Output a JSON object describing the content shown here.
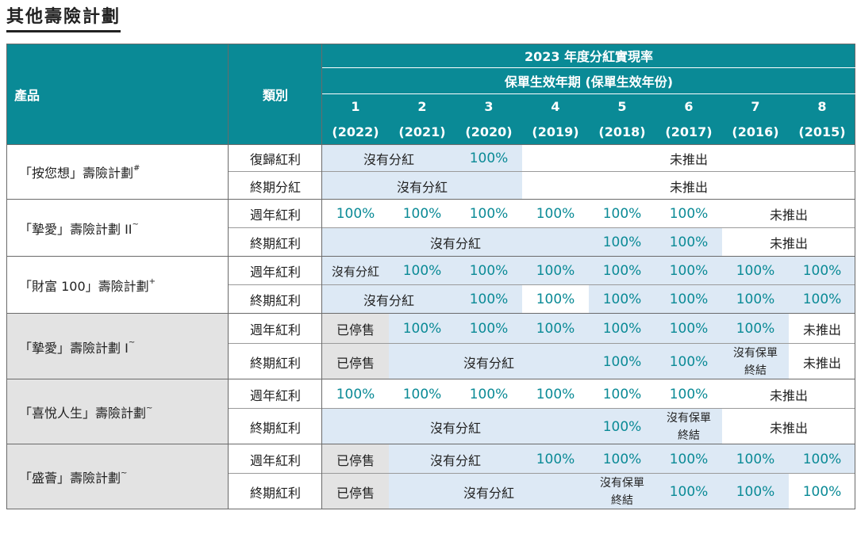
{
  "title": "其他壽險計劃",
  "header": {
    "product": "產品",
    "category": "類別",
    "rate_title": "2023 年度分紅實現率",
    "policy_year_title": "保單生效年期 (保單生效年份)",
    "years": [
      {
        "num": "1",
        "year": "(2022)"
      },
      {
        "num": "2",
        "year": "(2021)"
      },
      {
        "num": "3",
        "year": "(2020)"
      },
      {
        "num": "4",
        "year": "(2019)"
      },
      {
        "num": "5",
        "year": "(2018)"
      },
      {
        "num": "6",
        "year": "(2017)"
      },
      {
        "num": "7",
        "year": "(2016)"
      },
      {
        "num": "8",
        "year": "(2015)"
      }
    ]
  },
  "products": [
    {
      "name": "「按您想」壽險計劃",
      "mark": "#",
      "rows": [
        {
          "category": "復歸紅利",
          "cells": [
            {
              "text": "沒有分紅",
              "span": 2,
              "bg": "b"
            },
            {
              "text": "100%",
              "span": 1,
              "bg": "b",
              "teal": true
            },
            {
              "text": "未推出",
              "span": 5,
              "bg": "w"
            }
          ]
        },
        {
          "category": "終期分紅",
          "cells": [
            {
              "text": "沒有分紅",
              "span": 3,
              "bg": "b"
            },
            {
              "text": "未推出",
              "span": 5,
              "bg": "w"
            }
          ]
        }
      ]
    },
    {
      "name": "「摯愛」壽險計劃 II",
      "mark": "~",
      "rows": [
        {
          "category": "週年紅利",
          "cells": [
            {
              "text": "100%",
              "span": 1,
              "bg": "w",
              "teal": true
            },
            {
              "text": "100%",
              "span": 1,
              "bg": "w",
              "teal": true
            },
            {
              "text": "100%",
              "span": 1,
              "bg": "w",
              "teal": true
            },
            {
              "text": "100%",
              "span": 1,
              "bg": "w",
              "teal": true
            },
            {
              "text": "100%",
              "span": 1,
              "bg": "w",
              "teal": true
            },
            {
              "text": "100%",
              "span": 1,
              "bg": "w",
              "teal": true
            },
            {
              "text": "未推出",
              "span": 2,
              "bg": "w"
            }
          ]
        },
        {
          "category": "終期紅利",
          "cells": [
            {
              "text": "沒有分紅",
              "span": 4,
              "bg": "b"
            },
            {
              "text": "100%",
              "span": 1,
              "bg": "b",
              "teal": true
            },
            {
              "text": "100%",
              "span": 1,
              "bg": "b",
              "teal": true
            },
            {
              "text": "未推出",
              "span": 2,
              "bg": "w"
            }
          ]
        }
      ]
    },
    {
      "name": "「財富 100」壽險計劃",
      "mark": "+",
      "rows": [
        {
          "category": "週年紅利",
          "cells": [
            {
              "text": "沒有分紅",
              "span": 1,
              "bg": "b",
              "small": true
            },
            {
              "text": "100%",
              "span": 1,
              "bg": "b",
              "teal": true
            },
            {
              "text": "100%",
              "span": 1,
              "bg": "b",
              "teal": true
            },
            {
              "text": "100%",
              "span": 1,
              "bg": "b",
              "teal": true
            },
            {
              "text": "100%",
              "span": 1,
              "bg": "b",
              "teal": true
            },
            {
              "text": "100%",
              "span": 1,
              "bg": "b",
              "teal": true
            },
            {
              "text": "100%",
              "span": 1,
              "bg": "b",
              "teal": true
            },
            {
              "text": "100%",
              "span": 1,
              "bg": "b",
              "teal": true
            }
          ]
        },
        {
          "category": "終期紅利",
          "cells": [
            {
              "text": "沒有分紅",
              "span": 2,
              "bg": "b"
            },
            {
              "text": "100%",
              "span": 1,
              "bg": "b",
              "teal": true
            },
            {
              "text": "100%",
              "span": 1,
              "bg": "w",
              "teal": true
            },
            {
              "text": "100%",
              "span": 1,
              "bg": "b",
              "teal": true
            },
            {
              "text": "100%",
              "span": 1,
              "bg": "b",
              "teal": true
            },
            {
              "text": "100%",
              "span": 1,
              "bg": "b",
              "teal": true
            },
            {
              "text": "100%",
              "span": 1,
              "bg": "b",
              "teal": true
            }
          ]
        }
      ]
    },
    {
      "name": "「摯愛」壽險計劃 I",
      "mark": "~",
      "rows": [
        {
          "category": "週年紅利",
          "cells": [
            {
              "text": "已停售",
              "span": 1,
              "bg": "g"
            },
            {
              "text": "100%",
              "span": 1,
              "bg": "b",
              "teal": true
            },
            {
              "text": "100%",
              "span": 1,
              "bg": "b",
              "teal": true
            },
            {
              "text": "100%",
              "span": 1,
              "bg": "b",
              "teal": true
            },
            {
              "text": "100%",
              "span": 1,
              "bg": "b",
              "teal": true
            },
            {
              "text": "100%",
              "span": 1,
              "bg": "b",
              "teal": true
            },
            {
              "text": "100%",
              "span": 1,
              "bg": "b",
              "teal": true
            },
            {
              "text": "未推出",
              "span": 1,
              "bg": "w"
            }
          ]
        },
        {
          "category": "終期紅利",
          "cells": [
            {
              "text": "已停售",
              "span": 1,
              "bg": "g"
            },
            {
              "text": "沒有分紅",
              "span": 3,
              "bg": "b"
            },
            {
              "text": "100%",
              "span": 1,
              "bg": "b",
              "teal": true
            },
            {
              "text": "100%",
              "span": 1,
              "bg": "b",
              "teal": true
            },
            {
              "text": "沒有保單終結",
              "span": 1,
              "bg": "b",
              "wrap": true
            },
            {
              "text": "未推出",
              "span": 1,
              "bg": "w"
            }
          ]
        }
      ]
    },
    {
      "name": "「喜悅人生」壽險計劃",
      "mark": "~",
      "rows": [
        {
          "category": "週年紅利",
          "cells": [
            {
              "text": "100%",
              "span": 1,
              "bg": "w",
              "teal": true
            },
            {
              "text": "100%",
              "span": 1,
              "bg": "w",
              "teal": true
            },
            {
              "text": "100%",
              "span": 1,
              "bg": "w",
              "teal": true
            },
            {
              "text": "100%",
              "span": 1,
              "bg": "w",
              "teal": true
            },
            {
              "text": "100%",
              "span": 1,
              "bg": "w",
              "teal": true
            },
            {
              "text": "100%",
              "span": 1,
              "bg": "w",
              "teal": true
            },
            {
              "text": "未推出",
              "span": 2,
              "bg": "w"
            }
          ]
        },
        {
          "category": "終期紅利",
          "cells": [
            {
              "text": "沒有分紅",
              "span": 4,
              "bg": "b"
            },
            {
              "text": "100%",
              "span": 1,
              "bg": "b",
              "teal": true
            },
            {
              "text": "沒有保單終結",
              "span": 1,
              "bg": "b",
              "wrap": true
            },
            {
              "text": "未推出",
              "span": 2,
              "bg": "w"
            }
          ]
        }
      ]
    },
    {
      "name": "「盛薈」壽險計劃",
      "mark": "~",
      "rows": [
        {
          "category": "週年紅利",
          "cells": [
            {
              "text": "已停售",
              "span": 1,
              "bg": "g"
            },
            {
              "text": "沒有分紅",
              "span": 2,
              "bg": "b"
            },
            {
              "text": "100%",
              "span": 1,
              "bg": "b",
              "teal": true
            },
            {
              "text": "100%",
              "span": 1,
              "bg": "b",
              "teal": true
            },
            {
              "text": "100%",
              "span": 1,
              "bg": "b",
              "teal": true
            },
            {
              "text": "100%",
              "span": 1,
              "bg": "b",
              "teal": true
            },
            {
              "text": "100%",
              "span": 1,
              "bg": "b",
              "teal": true
            }
          ]
        },
        {
          "category": "終期紅利",
          "cells": [
            {
              "text": "已停售",
              "span": 1,
              "bg": "g"
            },
            {
              "text": "沒有分紅",
              "span": 3,
              "bg": "b"
            },
            {
              "text": "沒有保單終結",
              "span": 1,
              "bg": "b",
              "wrap": true
            },
            {
              "text": "100%",
              "span": 1,
              "bg": "b",
              "teal": true
            },
            {
              "text": "100%",
              "span": 1,
              "bg": "b",
              "teal": true
            },
            {
              "text": "100%",
              "span": 1,
              "bg": "w",
              "teal": true
            }
          ]
        }
      ]
    }
  ]
}
